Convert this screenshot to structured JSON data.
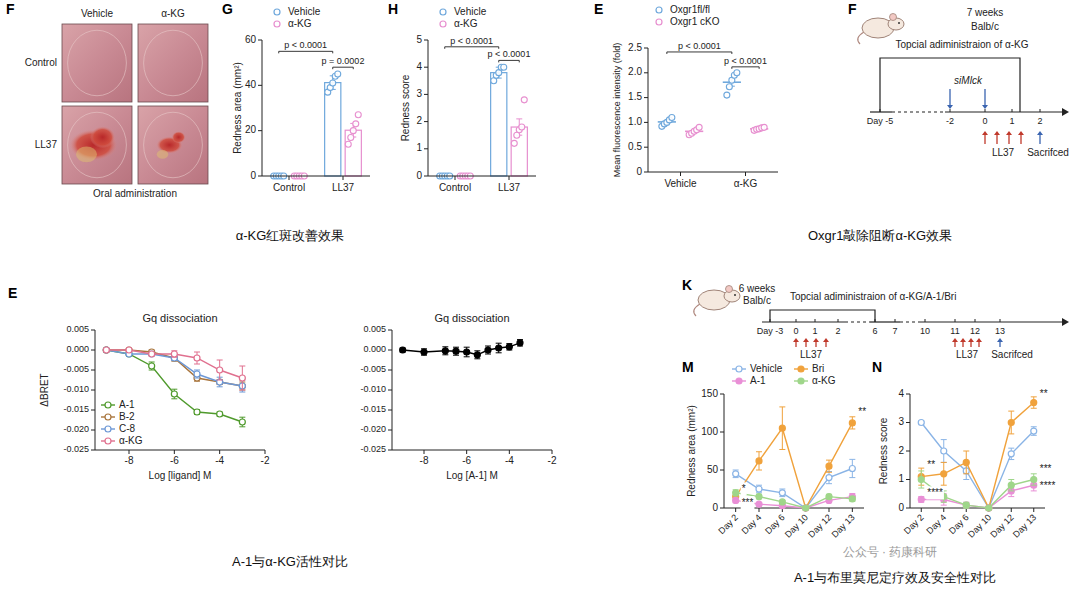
{
  "photo_panel": {
    "panel": "F",
    "columns": [
      "Vehicle",
      "α-KG"
    ],
    "rows": [
      "Control",
      "LL37"
    ],
    "caption": "Oral administration"
  },
  "chart_data": [
    {
      "panel": "G",
      "type": "bar",
      "y_label": "Redness area (mm²)",
      "categories": [
        "Control",
        "LL37"
      ],
      "series": [
        {
          "name": "Vehicle",
          "color": "#6fa8dc",
          "marker": "open-circle",
          "values": [
            0,
            41.2
          ],
          "errors": [
            0,
            3
          ],
          "points": [
            [
              0,
              0,
              0,
              0,
              0
            ],
            [
              37,
              39,
              41,
              44,
              45
            ]
          ]
        },
        {
          "name": "α-KG",
          "color": "#e78fcf",
          "marker": "open-circle",
          "values": [
            0,
            20.2
          ],
          "errors": [
            0,
            3
          ],
          "points": [
            [
              0,
              0,
              0,
              0,
              0
            ],
            [
              14,
              17,
              20,
              23,
              27
            ]
          ]
        }
      ],
      "ylim": [
        0,
        60
      ],
      "yticks": [
        0,
        20,
        40,
        60
      ],
      "legend": "top",
      "annotations": [
        {
          "text": "p < 0.0001",
          "from": [
            0,
            0
          ],
          "to": [
            1,
            0
          ],
          "value": 55
        },
        {
          "text": "p = 0.0002",
          "from": [
            1,
            0
          ],
          "to": [
            1,
            1
          ],
          "value": 48
        }
      ]
    },
    {
      "panel": "H",
      "type": "bar",
      "y_label": "Redness score",
      "categories": [
        "Control",
        "LL37"
      ],
      "series": [
        {
          "name": "Vehicle",
          "color": "#6fa8dc",
          "marker": "open-circle",
          "values": [
            0,
            3.8
          ],
          "errors": [
            0,
            0.2
          ],
          "points": [
            [
              0,
              0,
              0,
              0,
              0
            ],
            [
              3.5,
              3.7,
              3.8,
              4,
              4
            ]
          ]
        },
        {
          "name": "α-KG",
          "color": "#e78fcf",
          "marker": "open-circle",
          "values": [
            0,
            1.8
          ],
          "errors": [
            0,
            0.3
          ],
          "points": [
            [
              0,
              0,
              0,
              0,
              0
            ],
            [
              1.2,
              1.5,
              1.7,
              1.8,
              2.8
            ]
          ]
        }
      ],
      "ylim": [
        0,
        5
      ],
      "yticks": [
        0,
        1,
        2,
        3,
        4,
        5
      ],
      "legend": "top",
      "annotations": [
        {
          "text": "p < 0.0001",
          "from": [
            0,
            0
          ],
          "to": [
            1,
            0
          ],
          "value": 4.75
        },
        {
          "text": "p < 0.0001",
          "from": [
            1,
            0
          ],
          "to": [
            1,
            1
          ],
          "value": 4.25
        }
      ]
    },
    {
      "panel": "E",
      "type": "scatter",
      "y_label": "Mean fluorescence intensity (fold)",
      "categories": [
        "Vehicle",
        "α-KG"
      ],
      "series": [
        {
          "name": "Oxgr1fl/fl",
          "color": "#6fa8dc",
          "marker": "open-circle",
          "values": [
            1.01,
            1.81
          ],
          "errors": [
            0.03,
            0.08
          ],
          "points": [
            [
              0.92,
              0.97,
              1.0,
              1.05,
              1.1
            ],
            [
              1.55,
              1.72,
              1.85,
              1.95,
              2.0
            ]
          ]
        },
        {
          "name": "Oxgr1 cKO",
          "color": "#e78fcf",
          "marker": "open-circle",
          "values": [
            0.82,
            0.87
          ],
          "errors": [
            0.03,
            0.01
          ],
          "points": [
            [
              0.75,
              0.78,
              0.82,
              0.85,
              0.9
            ],
            [
              0.84,
              0.86,
              0.87,
              0.89,
              0.9
            ]
          ]
        }
      ],
      "ylim": [
        0,
        2.5
      ],
      "yticks": [
        0,
        0.5,
        {
          "value": 1,
          "label": "1.0"
        },
        1.5,
        {
          "value": 2,
          "label": "2.0"
        },
        2.5
      ],
      "legend": "top",
      "annotations": [
        {
          "text": "p < 0.0001",
          "from": [
            0,
            0
          ],
          "to": [
            1,
            0
          ],
          "value": 2.42
        },
        {
          "text": "p < 0.0001",
          "from": [
            1,
            0
          ],
          "to": [
            1,
            1
          ],
          "value": 2.12
        }
      ]
    },
    {
      "panel": "E",
      "type": "line",
      "title": "Gq dissociation",
      "x_label": "Log [ligand] M",
      "y_label": "ΔBRET",
      "x": [
        -9,
        -8,
        -7,
        -6,
        -5,
        -4,
        -3
      ],
      "xlim": [
        -9.5,
        -2
      ],
      "xticks": [
        -8,
        -6,
        -4,
        -2
      ],
      "ylim": [
        -0.025,
        0.005
      ],
      "yticks": [
        0.005,
        {
          "value": 0,
          "label": "0.000"
        },
        -0.005,
        {
          "value": -0.01,
          "label": "-0.010"
        },
        -0.015,
        {
          "value": -0.02,
          "label": "-0.020"
        },
        -0.025
      ],
      "legend": "lower left",
      "series": [
        {
          "name": "A-1",
          "color": "#4f9a2c",
          "marker": "open-circle",
          "line_style": "solid",
          "values": [
            0,
            -0.001,
            -0.004,
            -0.011,
            -0.0155,
            -0.016,
            -0.018
          ],
          "errors": [
            0.0003,
            0.0005,
            0.001,
            0.0012,
            0.0006,
            0.0005,
            0.0012
          ]
        },
        {
          "name": "B-2",
          "color": "#a8743c",
          "marker": "open-circle",
          "line_style": "solid",
          "values": [
            0,
            0,
            -0.0005,
            -0.002,
            -0.007,
            -0.008,
            -0.009
          ],
          "errors": [
            0.0003,
            0.0004,
            0.0005,
            0.0008,
            0.0008,
            0.0006,
            0.001
          ]
        },
        {
          "name": "C-8",
          "color": "#6d98d6",
          "marker": "open-circle",
          "line_style": "solid",
          "values": [
            0,
            -0.001,
            -0.001,
            -0.002,
            -0.006,
            -0.008,
            -0.009
          ],
          "errors": [
            0.0003,
            0.0003,
            0.0004,
            0.0006,
            0.001,
            0.0012,
            0.0015
          ]
        },
        {
          "name": "α-KG",
          "color": "#e0708f",
          "marker": "open-circle",
          "line_style": "solid",
          "values": [
            0,
            0,
            -0.001,
            -0.001,
            -0.002,
            -0.005,
            -0.007
          ],
          "errors": [
            0.0003,
            0.0003,
            0.0004,
            0.0008,
            0.0015,
            0.0025,
            0.003
          ]
        }
      ]
    },
    {
      "type": "line",
      "title": "Gq dissociation",
      "x_label": "Log [A-1] M",
      "x": [
        -9,
        -8,
        -7,
        -6.5,
        -6,
        -5.5,
        -5,
        -4.5,
        -4,
        -3.5
      ],
      "xlim": [
        -9.5,
        -2
      ],
      "xticks": [
        -8,
        -6,
        -4,
        -2
      ],
      "ylim": [
        -0.025,
        0.005
      ],
      "yticks": [
        0.005,
        {
          "value": 0,
          "label": "0.000"
        },
        -0.005,
        {
          "value": -0.01,
          "label": "-0.010"
        },
        -0.015,
        {
          "value": -0.02,
          "label": "-0.020"
        },
        -0.025
      ],
      "series": [
        {
          "color": "#000000",
          "marker": "circle",
          "line_style": "solid",
          "values": [
            0,
            -0.0005,
            -0.0002,
            -0.0003,
            -0.0005,
            -0.0012,
            0,
            0.0005,
            0.0008,
            0.0018
          ],
          "errors": [
            0.0005,
            0.0008,
            0.001,
            0.001,
            0.0012,
            0.001,
            0.001,
            0.0012,
            0.0008,
            0.0008
          ]
        }
      ]
    },
    {
      "panel": "M",
      "type": "line",
      "y_label": "Redness area (mm²)",
      "categories": [
        "Day 2",
        "Day 4",
        "Day 6",
        "Day 10",
        "Day 12",
        "Day 13"
      ],
      "ylim": [
        0,
        150
      ],
      "yticks": [
        0,
        50,
        100,
        150
      ],
      "legend": "top",
      "series": [
        {
          "name": "Vehicle",
          "color": "#8ab4e6",
          "marker": "open-circle",
          "line_style": "solid",
          "values": [
            45,
            25,
            20,
            0,
            40,
            52
          ],
          "errors": [
            5,
            5,
            5,
            0,
            8,
            12
          ]
        },
        {
          "name": "Bri",
          "color": "#f0a23c",
          "marker": "circle",
          "line_style": "solid",
          "values": [
            15,
            62,
            105,
            0,
            55,
            112
          ],
          "errors": [
            5,
            12,
            28,
            0,
            8,
            8
          ]
        },
        {
          "name": "A-1",
          "color": "#e98fd6",
          "marker": "circle",
          "line_style": "solid",
          "values": [
            10,
            5,
            3,
            0,
            10,
            15
          ],
          "errors": [
            3,
            2,
            2,
            0,
            3,
            4
          ]
        },
        {
          "name": "α-KG",
          "color": "#9fd68a",
          "marker": "circle",
          "line_style": "solid",
          "values": [
            20,
            15,
            8,
            0,
            15,
            12
          ],
          "errors": [
            4,
            3,
            2,
            0,
            3,
            3
          ]
        }
      ],
      "annotations": [
        {
          "text": "*",
          "category": 0,
          "value": 24
        },
        {
          "text": "***",
          "category": 0,
          "value": 6
        },
        {
          "text": "**",
          "category": 5,
          "value": 126
        }
      ]
    },
    {
      "panel": "N",
      "type": "line",
      "y_label": "Redness score",
      "categories": [
        "Day 2",
        "Day 4",
        "Day 6",
        "Day 10",
        "Day 12",
        "Day 13"
      ],
      "ylim": [
        0,
        4
      ],
      "yticks": [
        0,
        1,
        2,
        3,
        4
      ],
      "series": [
        {
          "color": "#8ab4e6",
          "marker": "open-circle",
          "line_style": "solid",
          "values": [
            3.0,
            2.0,
            1.3,
            0,
            1.9,
            2.7
          ],
          "errors": [
            0.05,
            0.4,
            0.3,
            0,
            0.2,
            0.15
          ]
        },
        {
          "color": "#f0a23c",
          "marker": "circle",
          "line_style": "solid",
          "values": [
            1.1,
            1.2,
            1.6,
            0,
            3.0,
            3.7
          ],
          "errors": [
            0.3,
            0.4,
            0.4,
            0,
            0.4,
            0.2
          ]
        },
        {
          "color": "#e98fd6",
          "marker": "circle",
          "line_style": "solid",
          "values": [
            0.3,
            0.3,
            0.1,
            0,
            0.6,
            0.8
          ],
          "errors": [
            0.1,
            0.2,
            0.1,
            0,
            0.2,
            0.2
          ]
        },
        {
          "color": "#9fd68a",
          "marker": "circle",
          "line_style": "solid",
          "values": [
            1.0,
            0.4,
            0.1,
            0,
            0.8,
            1.0
          ],
          "errors": [
            0.3,
            0.2,
            0.1,
            0,
            0.2,
            0.2
          ]
        }
      ],
      "annotations": [
        {
          "text": "**",
          "category": 0,
          "value": 1.5
        },
        {
          "text": "****",
          "category": 0,
          "value": 0.5
        },
        {
          "text": "**",
          "category": 5,
          "value": 4.0
        },
        {
          "text": "***",
          "category": 5,
          "value": 1.35
        },
        {
          "text": "****",
          "category": 5,
          "value": 0.75
        }
      ]
    }
  ],
  "diagrams": [
    {
      "panel": "F",
      "age": "7 weeks",
      "strain": "Balb/c",
      "treatment": "Topcial adiministraion of α-KG",
      "days": [
        "Day -5",
        "-2",
        "0",
        "1",
        "2"
      ],
      "injection": "siMlck",
      "challenge": "LL37",
      "endpoint": "Sacrifced"
    },
    {
      "panel": "K",
      "age": "6 weeks",
      "strain": "Balb/c",
      "treatment": "Topcial adiministraion of α-KG/A-1/Bri",
      "days": [
        "Day -3",
        "0",
        "1",
        "2",
        "6",
        "7",
        "10",
        "11",
        "12",
        "13"
      ],
      "challenge": "LL37",
      "endpoint": "Sacrifced"
    }
  ],
  "captions": [
    "α-KG红斑改善效果",
    "Oxgr1敲除阻断α-KG效果",
    "A-1与α-KG活性对比",
    "A-1与布里莫尼定疗效及安全性对比"
  ],
  "watermark": "公众号 · 药康科研"
}
